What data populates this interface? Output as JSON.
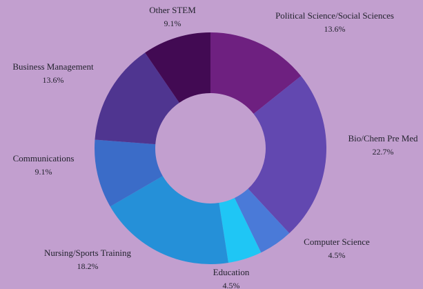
{
  "chart_data": {
    "type": "pie",
    "variant": "donut",
    "title": "",
    "background_color": "#c29fcf",
    "label_color": "#23232e",
    "categories": [
      "Political Science/Social Sciences",
      "Bio/Chem Pre Med",
      "Computer Science",
      "Education",
      "Nursing/Sports Training",
      "Communications",
      "Business Management",
      "Other STEM"
    ],
    "values": [
      13.6,
      22.7,
      4.5,
      4.5,
      18.2,
      9.1,
      13.6,
      9.1
    ],
    "value_labels": [
      "13.6%",
      "22.7%",
      "4.5%",
      "4.5%",
      "18.2%",
      "9.1%",
      "13.6%",
      "9.1%"
    ],
    "colors": [
      "#6e2080",
      "#6248b0",
      "#4a7ad8",
      "#1fc6f5",
      "#2590d8",
      "#3b6cc8",
      "#4f3590",
      "#420a53"
    ],
    "start_angle": "12 o'clock",
    "direction": "clockwise"
  }
}
